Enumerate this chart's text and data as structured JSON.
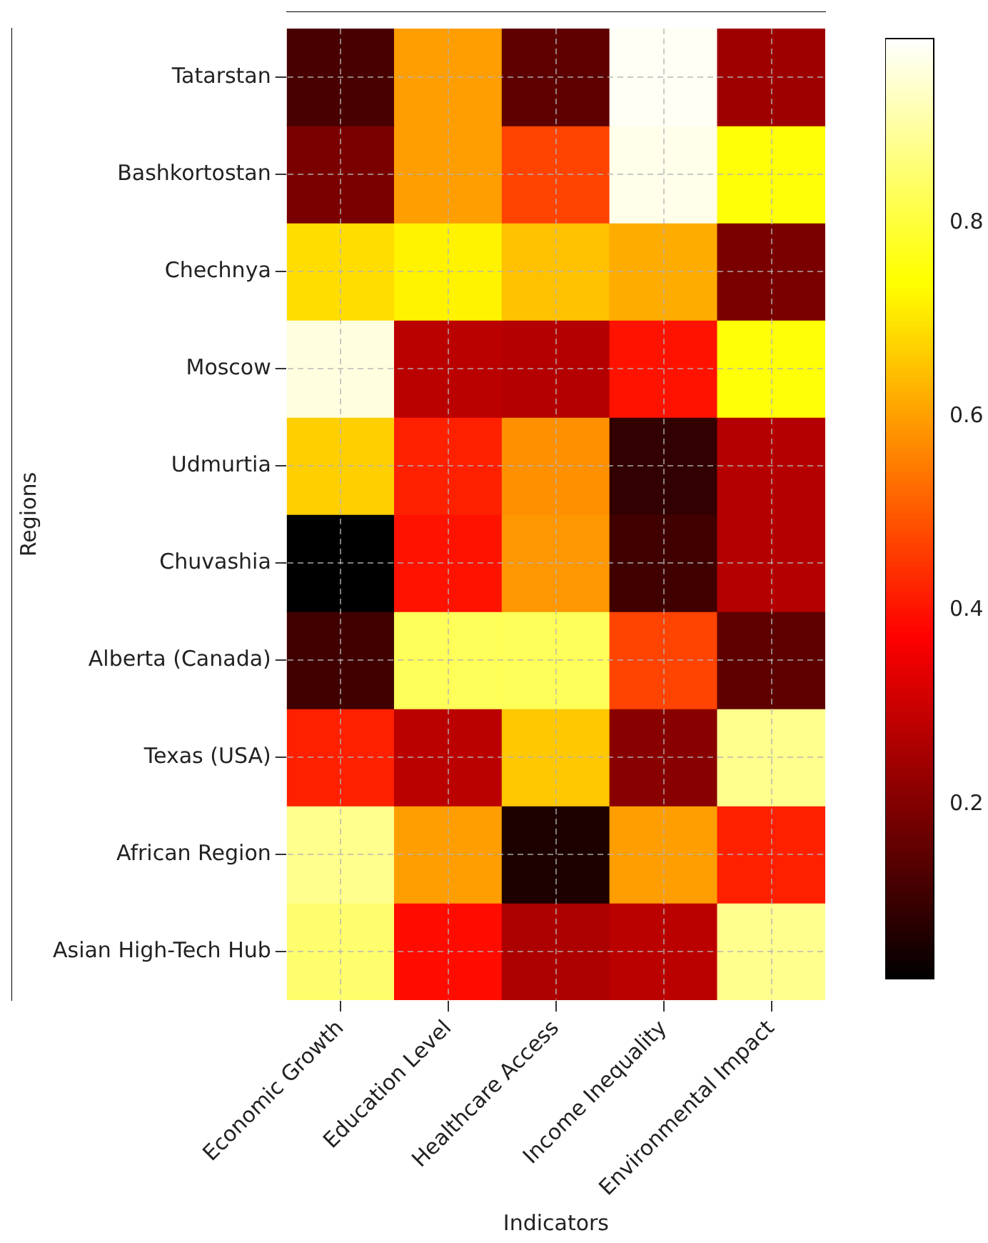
{
  "chart_data": {
    "type": "heatmap",
    "xlabel": "Indicators",
    "ylabel": "Regions",
    "categories": [
      "Economic Growth",
      "Education Level",
      "Healthcare Access",
      "Income Inequality",
      "Environmental Impact"
    ],
    "y_categories": [
      "Tatarstan",
      "Bashkortostan",
      "Chechnya",
      "Moscow",
      "Udmurtia",
      "Chuvashia",
      "Alberta (Canada)",
      "Texas (USA)",
      "African Region",
      "Asian High-Tech Hub"
    ],
    "cells": [
      [
        0.12,
        0.6,
        0.15,
        0.98,
        0.24
      ],
      [
        0.19,
        0.6,
        0.47,
        0.97,
        0.75
      ],
      [
        0.69,
        0.72,
        0.65,
        0.62,
        0.19
      ],
      [
        0.96,
        0.28,
        0.27,
        0.4,
        0.75
      ],
      [
        0.67,
        0.42,
        0.58,
        0.09,
        0.27
      ],
      [
        0.02,
        0.4,
        0.59,
        0.11,
        0.27
      ],
      [
        0.11,
        0.83,
        0.83,
        0.47,
        0.15
      ],
      [
        0.42,
        0.28,
        0.66,
        0.21,
        0.88
      ],
      [
        0.88,
        0.6,
        0.06,
        0.6,
        0.42
      ],
      [
        0.85,
        0.39,
        0.26,
        0.28,
        0.88
      ]
    ],
    "clim": [
      0.02,
      0.99
    ],
    "cticks": [
      0.2,
      0.4,
      0.6,
      0.8
    ],
    "grid": true
  }
}
